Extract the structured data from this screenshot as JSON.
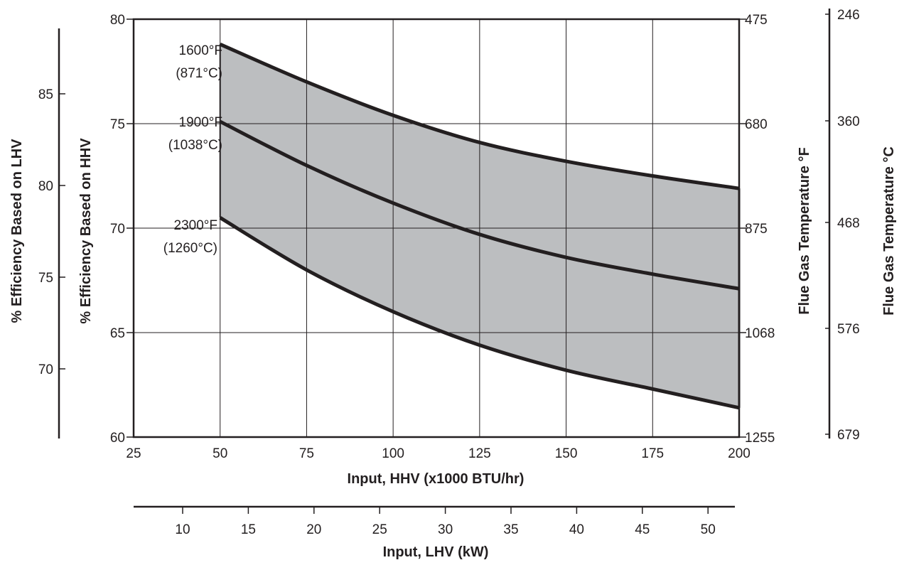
{
  "chart_data": {
    "type": "line",
    "x_axis": {
      "label": "Input, HHV (x1000 BTU/hr)",
      "range": [
        25,
        200
      ],
      "ticks": [
        25,
        50,
        75,
        100,
        125,
        150,
        175,
        200
      ]
    },
    "x2_axis": {
      "label": "Input, LHV (kW)",
      "ticks": [
        10,
        15,
        20,
        25,
        30,
        35,
        40,
        45,
        50
      ]
    },
    "y_axis": {
      "label": "% Efficiency Based on HHV",
      "range": [
        60,
        80
      ],
      "ticks": [
        60,
        65,
        70,
        75,
        80
      ]
    },
    "y_left2_axis": {
      "label": "% Efficiency Based on LHV",
      "ticks": [
        70,
        75,
        80,
        85
      ]
    },
    "y_right_axis": {
      "label": "Flue Gas Temperature °F",
      "ticks": [
        "475",
        "680",
        "875",
        "1068",
        "1255"
      ]
    },
    "y_right2_axis": {
      "label": "Flue Gas Temperature °C",
      "ticks": [
        "246",
        "360",
        "468",
        "576",
        "679"
      ]
    },
    "grid": true,
    "shaded_region": "between top and bottom series",
    "series": [
      {
        "name": "1600°F\n(871°C)",
        "label_lines": [
          "1600°F",
          "(871°C)"
        ],
        "x": [
          50,
          75,
          100,
          125,
          150,
          175,
          200
        ],
        "y": [
          78.8,
          77.0,
          75.4,
          74.1,
          73.2,
          72.5,
          71.9
        ]
      },
      {
        "name": "1900°F\n(1038°C)",
        "label_lines": [
          "1900°F",
          "(1038°C)"
        ],
        "x": [
          50,
          75,
          100,
          125,
          150,
          175,
          200
        ],
        "y": [
          75.1,
          73.0,
          71.2,
          69.7,
          68.6,
          67.8,
          67.1
        ]
      },
      {
        "name": "2300°F\n(1260°C)",
        "label_lines": [
          "2300°F",
          "(1260°C)"
        ],
        "x": [
          50,
          75,
          100,
          125,
          150,
          175,
          200
        ],
        "y": [
          70.5,
          68.0,
          66.0,
          64.4,
          63.2,
          62.3,
          61.4
        ]
      }
    ],
    "colors": {
      "line": "#231f20",
      "fill": "#bcbec0",
      "grid": "#231f20"
    }
  }
}
